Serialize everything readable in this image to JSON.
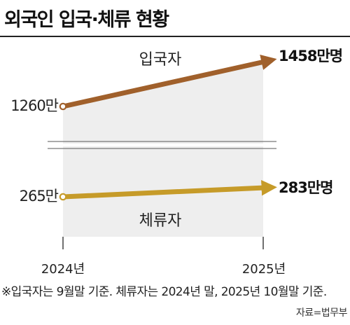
{
  "title": "외국인 입국·체류 현황",
  "chart_data": {
    "type": "line",
    "categories": [
      "2024년",
      "2025년"
    ],
    "series": [
      {
        "name": "입국자",
        "values": [
          1260,
          1458
        ],
        "start_label": "1260만",
        "end_label": "1458만명",
        "color": "#a0602b"
      },
      {
        "name": "체류자",
        "values": [
          265,
          283
        ],
        "start_label": "265만",
        "end_label": "283만명",
        "color": "#c69b29"
      }
    ],
    "unit": "만명",
    "axis_break": true,
    "grid": false,
    "legend": "none"
  },
  "note": "※입국자는 9월말 기준. 체류자는 2024년 말, 2025년 10월말 기준.",
  "source": "자료=법무부"
}
